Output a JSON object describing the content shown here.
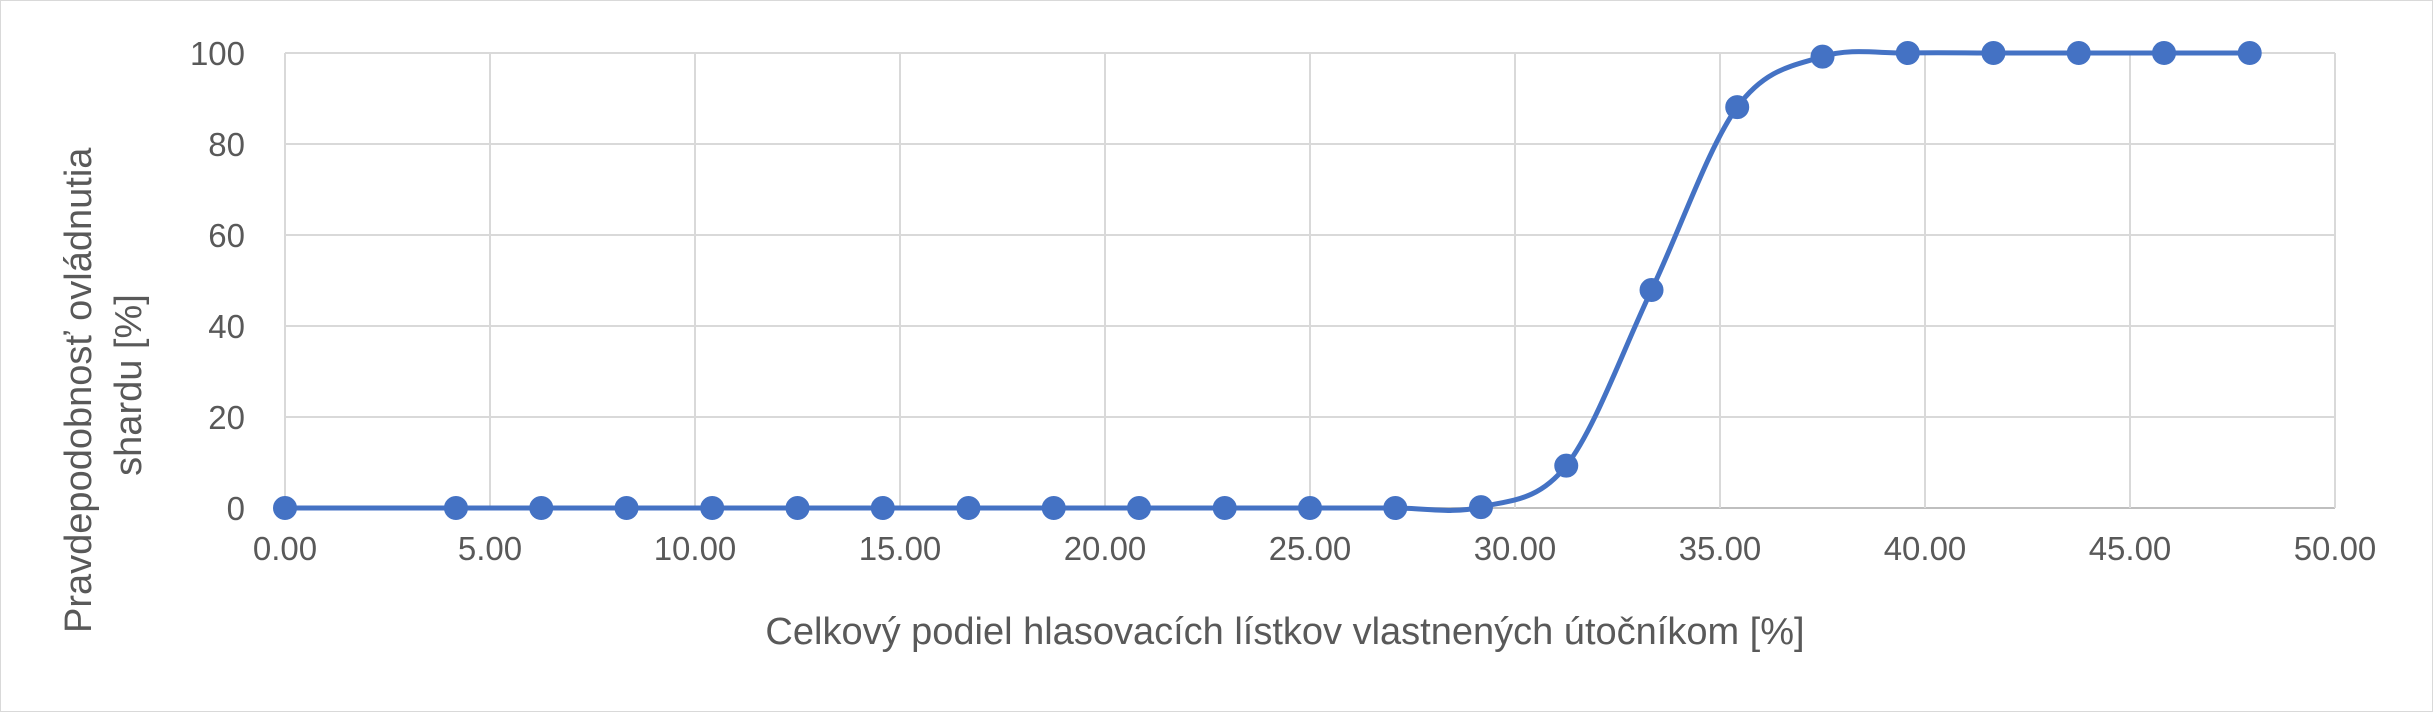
{
  "chart_data": {
    "type": "line",
    "title": "",
    "xlabel": "Celkový podiel hlasovacích lístkov vlastnených útočníkom [%]",
    "ylabel_lines": [
      "Pravdepodobnosť ovládnutia",
      "shardu [%]"
    ],
    "xlim": [
      0,
      50
    ],
    "ylim": [
      0,
      100
    ],
    "x_ticks": [
      "0.00",
      "5.00",
      "10.00",
      "15.00",
      "20.00",
      "25.00",
      "30.00",
      "35.00",
      "40.00",
      "45.00",
      "50.00"
    ],
    "y_ticks": [
      "0",
      "20",
      "40",
      "60",
      "80",
      "100"
    ],
    "grid": true,
    "series": [
      {
        "color": "#4472c4",
        "smooth": true,
        "markers": true,
        "x": [
          0,
          4.17,
          6.25,
          8.33,
          10.42,
          12.5,
          14.58,
          16.67,
          18.75,
          20.83,
          22.92,
          25.0,
          27.08,
          29.17,
          31.25,
          33.33,
          35.42,
          37.5,
          39.58,
          41.67,
          43.75,
          45.83,
          47.92
        ],
        "y": [
          0,
          0,
          0,
          0,
          0,
          0,
          0,
          0,
          0,
          0,
          0,
          0,
          0,
          0.2,
          9.3,
          47.9,
          88.1,
          99.2,
          100,
          100,
          100,
          100,
          100
        ]
      }
    ]
  }
}
